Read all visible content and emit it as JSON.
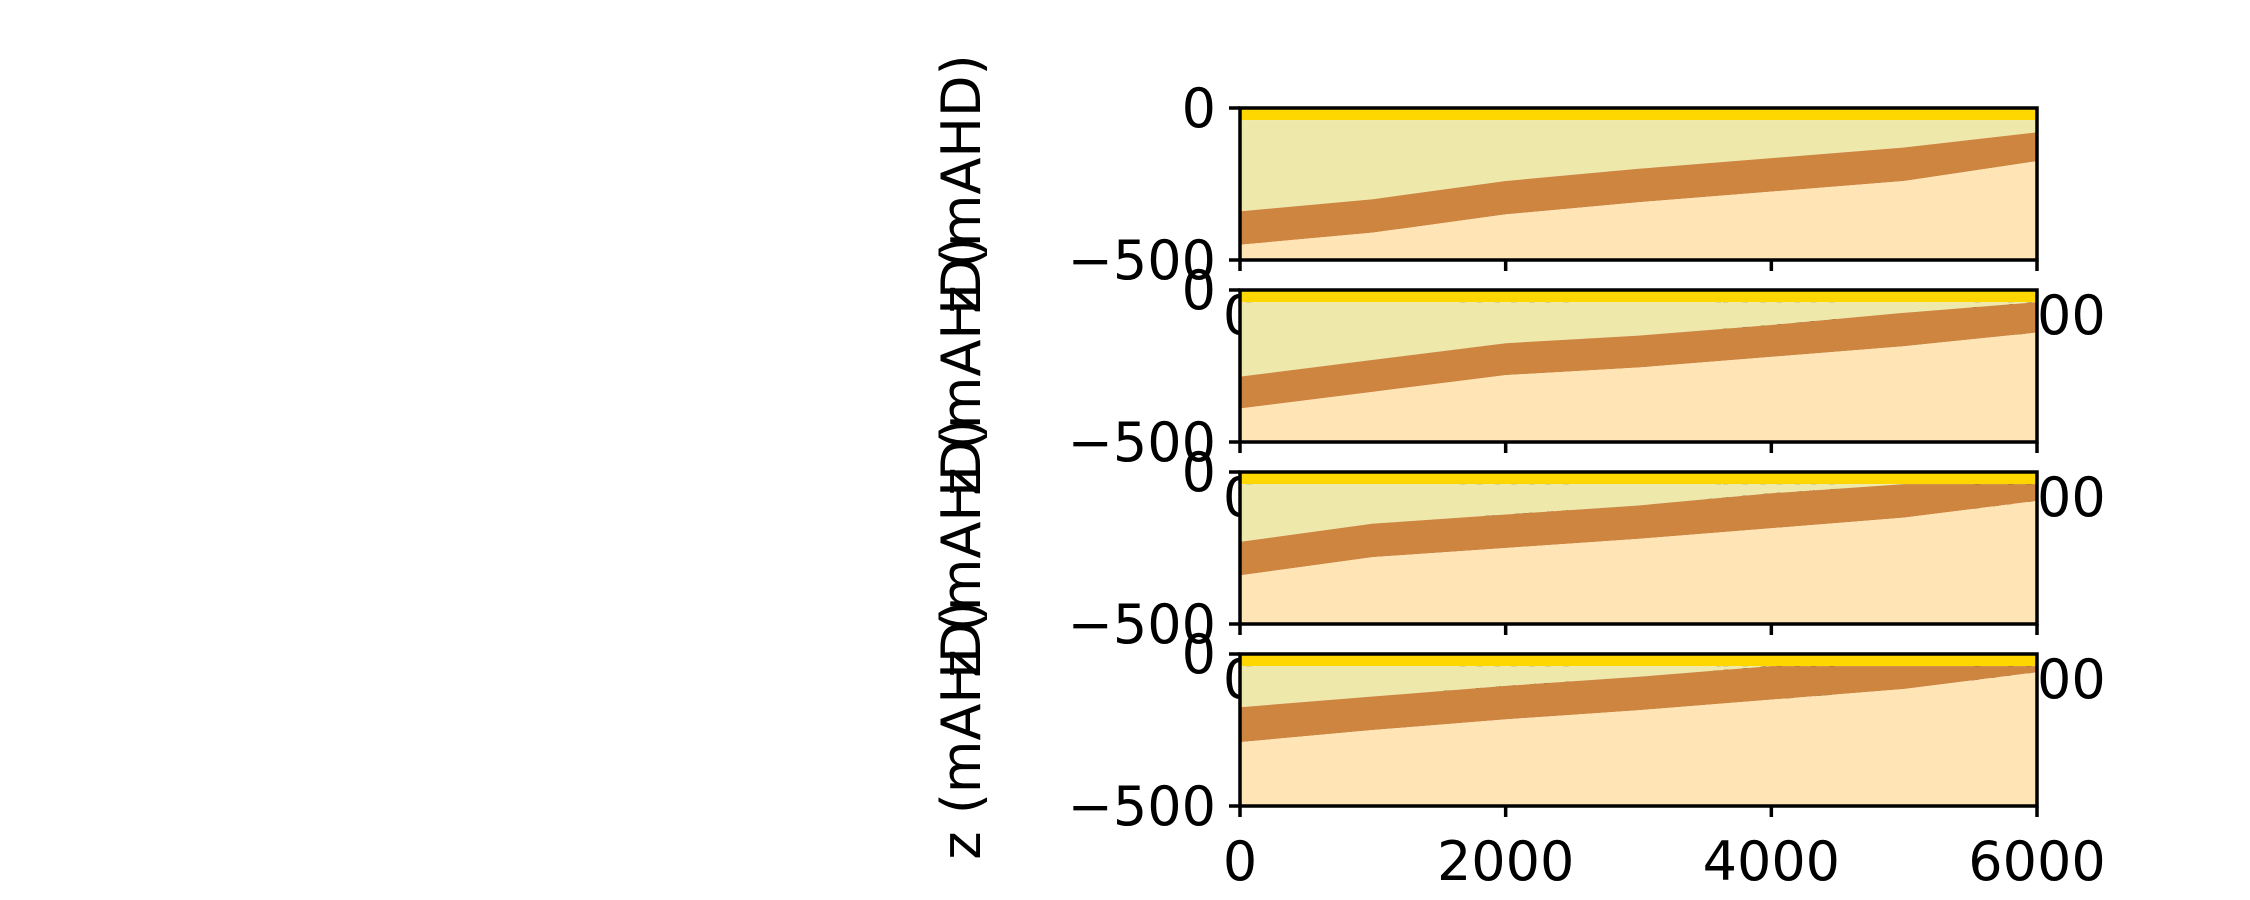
{
  "colors": {
    "top_layer": "#FFD700",
    "upper_unit": "#EEE8AA",
    "aquitard": "#CD853F",
    "lower_unit": "#FFE4B5"
  },
  "chart_data": [
    {
      "type": "area",
      "ylabel": "z (mAHD)",
      "xlim": [
        0,
        6000
      ],
      "ylim": [
        -500,
        0
      ],
      "xticks": [
        "0",
        "2000",
        "4000",
        "6000"
      ],
      "yticks": [
        "0",
        "−500"
      ],
      "x": [
        0,
        1000,
        2000,
        3000,
        4000,
        5000,
        6000
      ],
      "layers": [
        {
          "name": "",
          "color_key": "top_layer",
          "top": [
            0,
            0,
            0,
            0,
            0,
            0,
            0
          ],
          "bottom": [
            -40,
            -40,
            -40,
            -40,
            -40,
            -40,
            -40
          ]
        },
        {
          "name": "",
          "color_key": "upper_unit",
          "top": [
            -40,
            -40,
            -40,
            -40,
            -40,
            -40,
            -40
          ],
          "bottom": [
            -340,
            -300,
            -240,
            -200,
            -165,
            -130,
            -80
          ]
        },
        {
          "name": "",
          "color_key": "aquitard",
          "top": [
            -340,
            -300,
            -240,
            -200,
            -165,
            -130,
            -80
          ],
          "bottom": [
            -450,
            -410,
            -350,
            -310,
            -275,
            -240,
            -175
          ]
        },
        {
          "name": "",
          "color_key": "lower_unit",
          "top": [
            -450,
            -410,
            -350,
            -310,
            -275,
            -240,
            -175
          ],
          "bottom": [
            -500,
            -500,
            -500,
            -500,
            -500,
            -500,
            -500
          ]
        }
      ]
    },
    {
      "type": "area",
      "ylabel": "z (mAHD)",
      "xlim": [
        0,
        6000
      ],
      "ylim": [
        -500,
        0
      ],
      "xticks": [
        "0",
        "2000",
        "4000",
        "6000"
      ],
      "yticks": [
        "0",
        "−500"
      ],
      "x": [
        0,
        1000,
        2000,
        3000,
        4000,
        5000,
        6000
      ],
      "layers": [
        {
          "name": "",
          "color_key": "top_layer",
          "top": [
            0,
            0,
            0,
            0,
            0,
            0,
            0
          ],
          "bottom": [
            -40,
            -40,
            -40,
            -40,
            -40,
            -40,
            -40
          ]
        },
        {
          "name": "",
          "color_key": "upper_unit",
          "top": [
            -40,
            -40,
            -40,
            -40,
            -40,
            -40,
            -40
          ],
          "bottom": [
            -285,
            -230,
            -175,
            -150,
            -115,
            -75,
            -40
          ]
        },
        {
          "name": "",
          "color_key": "aquitard",
          "top": [
            -285,
            -230,
            -175,
            -150,
            -115,
            -75,
            -40
          ],
          "bottom": [
            -390,
            -335,
            -280,
            -255,
            -220,
            -185,
            -140
          ]
        },
        {
          "name": "",
          "color_key": "lower_unit",
          "top": [
            -390,
            -335,
            -280,
            -255,
            -220,
            -185,
            -140
          ],
          "bottom": [
            -500,
            -500,
            -500,
            -500,
            -500,
            -500,
            -500
          ]
        }
      ]
    },
    {
      "type": "area",
      "ylabel": "z (mAHD)",
      "xlim": [
        0,
        6000
      ],
      "ylim": [
        -500,
        0
      ],
      "xticks": [
        "0",
        "2000",
        "4000",
        "6000"
      ],
      "yticks": [
        "0",
        "−500"
      ],
      "x": [
        0,
        1000,
        2000,
        3000,
        4000,
        5000,
        6000
      ],
      "layers": [
        {
          "name": "",
          "color_key": "top_layer",
          "top": [
            0,
            0,
            0,
            0,
            0,
            0,
            0
          ],
          "bottom": [
            -40,
            -40,
            -40,
            -40,
            -40,
            -40,
            -40
          ]
        },
        {
          "name": "",
          "color_key": "upper_unit",
          "top": [
            -40,
            -40,
            -40,
            -40,
            -40,
            -40,
            -40
          ],
          "bottom": [
            -230,
            -170,
            -140,
            -110,
            -70,
            -40,
            -40
          ]
        },
        {
          "name": "",
          "color_key": "aquitard",
          "top": [
            -230,
            -170,
            -140,
            -110,
            -70,
            -40,
            -40
          ],
          "bottom": [
            -340,
            -280,
            -250,
            -220,
            -185,
            -150,
            -95
          ]
        },
        {
          "name": "",
          "color_key": "lower_unit",
          "top": [
            -340,
            -280,
            -250,
            -220,
            -185,
            -150,
            -95
          ],
          "bottom": [
            -500,
            -500,
            -500,
            -500,
            -500,
            -500,
            -500
          ]
        }
      ]
    },
    {
      "type": "area",
      "ylabel": "z (mAHD)",
      "xlim": [
        0,
        6000
      ],
      "ylim": [
        -500,
        0
      ],
      "xticks": [
        "0",
        "2000",
        "4000",
        "6000"
      ],
      "yticks": [
        "0",
        "−500"
      ],
      "x": [
        0,
        1000,
        2000,
        3000,
        4000,
        5000,
        6000
      ],
      "layers": [
        {
          "name": "",
          "color_key": "top_layer",
          "top": [
            0,
            0,
            0,
            0,
            0,
            0,
            0
          ],
          "bottom": [
            -40,
            -40,
            -40,
            -40,
            -40,
            -40,
            -40
          ]
        },
        {
          "name": "",
          "color_key": "upper_unit",
          "top": [
            -40,
            -40,
            -40,
            -40,
            -40,
            -40,
            -40
          ],
          "bottom": [
            -175,
            -140,
            -105,
            -75,
            -40,
            -40,
            -40
          ]
        },
        {
          "name": "",
          "color_key": "aquitard",
          "top": [
            -175,
            -140,
            -105,
            -75,
            -40,
            -40,
            -40
          ],
          "bottom": [
            -290,
            -250,
            -215,
            -185,
            -150,
            -115,
            -60
          ]
        },
        {
          "name": "",
          "color_key": "lower_unit",
          "top": [
            -290,
            -250,
            -215,
            -185,
            -150,
            -115,
            -60
          ],
          "bottom": [
            -500,
            -500,
            -500,
            -500,
            -500,
            -500,
            -500
          ]
        }
      ]
    }
  ]
}
